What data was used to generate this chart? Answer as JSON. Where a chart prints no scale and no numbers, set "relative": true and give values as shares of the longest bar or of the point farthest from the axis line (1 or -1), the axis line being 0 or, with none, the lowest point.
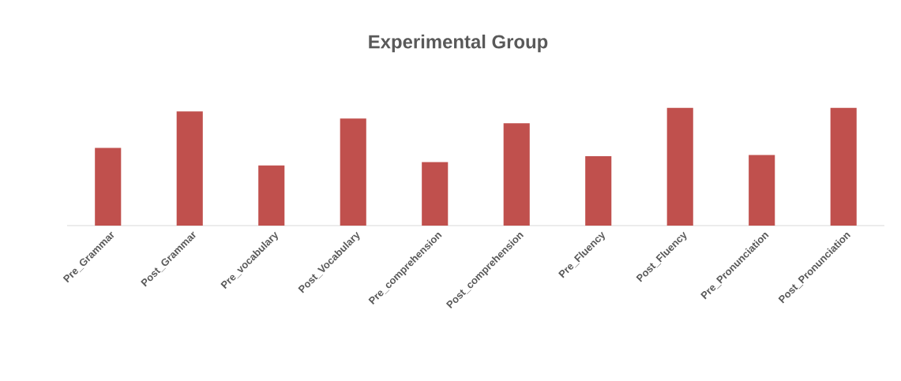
{
  "chart_data": {
    "type": "bar",
    "title": "Experimental Group",
    "categories": [
      "Pre_Grammar",
      "Post_Grammar",
      "Pre_vocabulary",
      "Post_Vocabulary",
      "Pre_comprehension",
      "Post_comprehension",
      "Pre_Fluency",
      "Post_Fluency",
      "Pre_Pronunciation",
      "Post_Pronunciation"
    ],
    "values": [
      0.66,
      0.97,
      0.51,
      0.91,
      0.54,
      0.87,
      0.59,
      1,
      0.6,
      1
    ],
    "color": "#c0504d",
    "relative": true
  }
}
